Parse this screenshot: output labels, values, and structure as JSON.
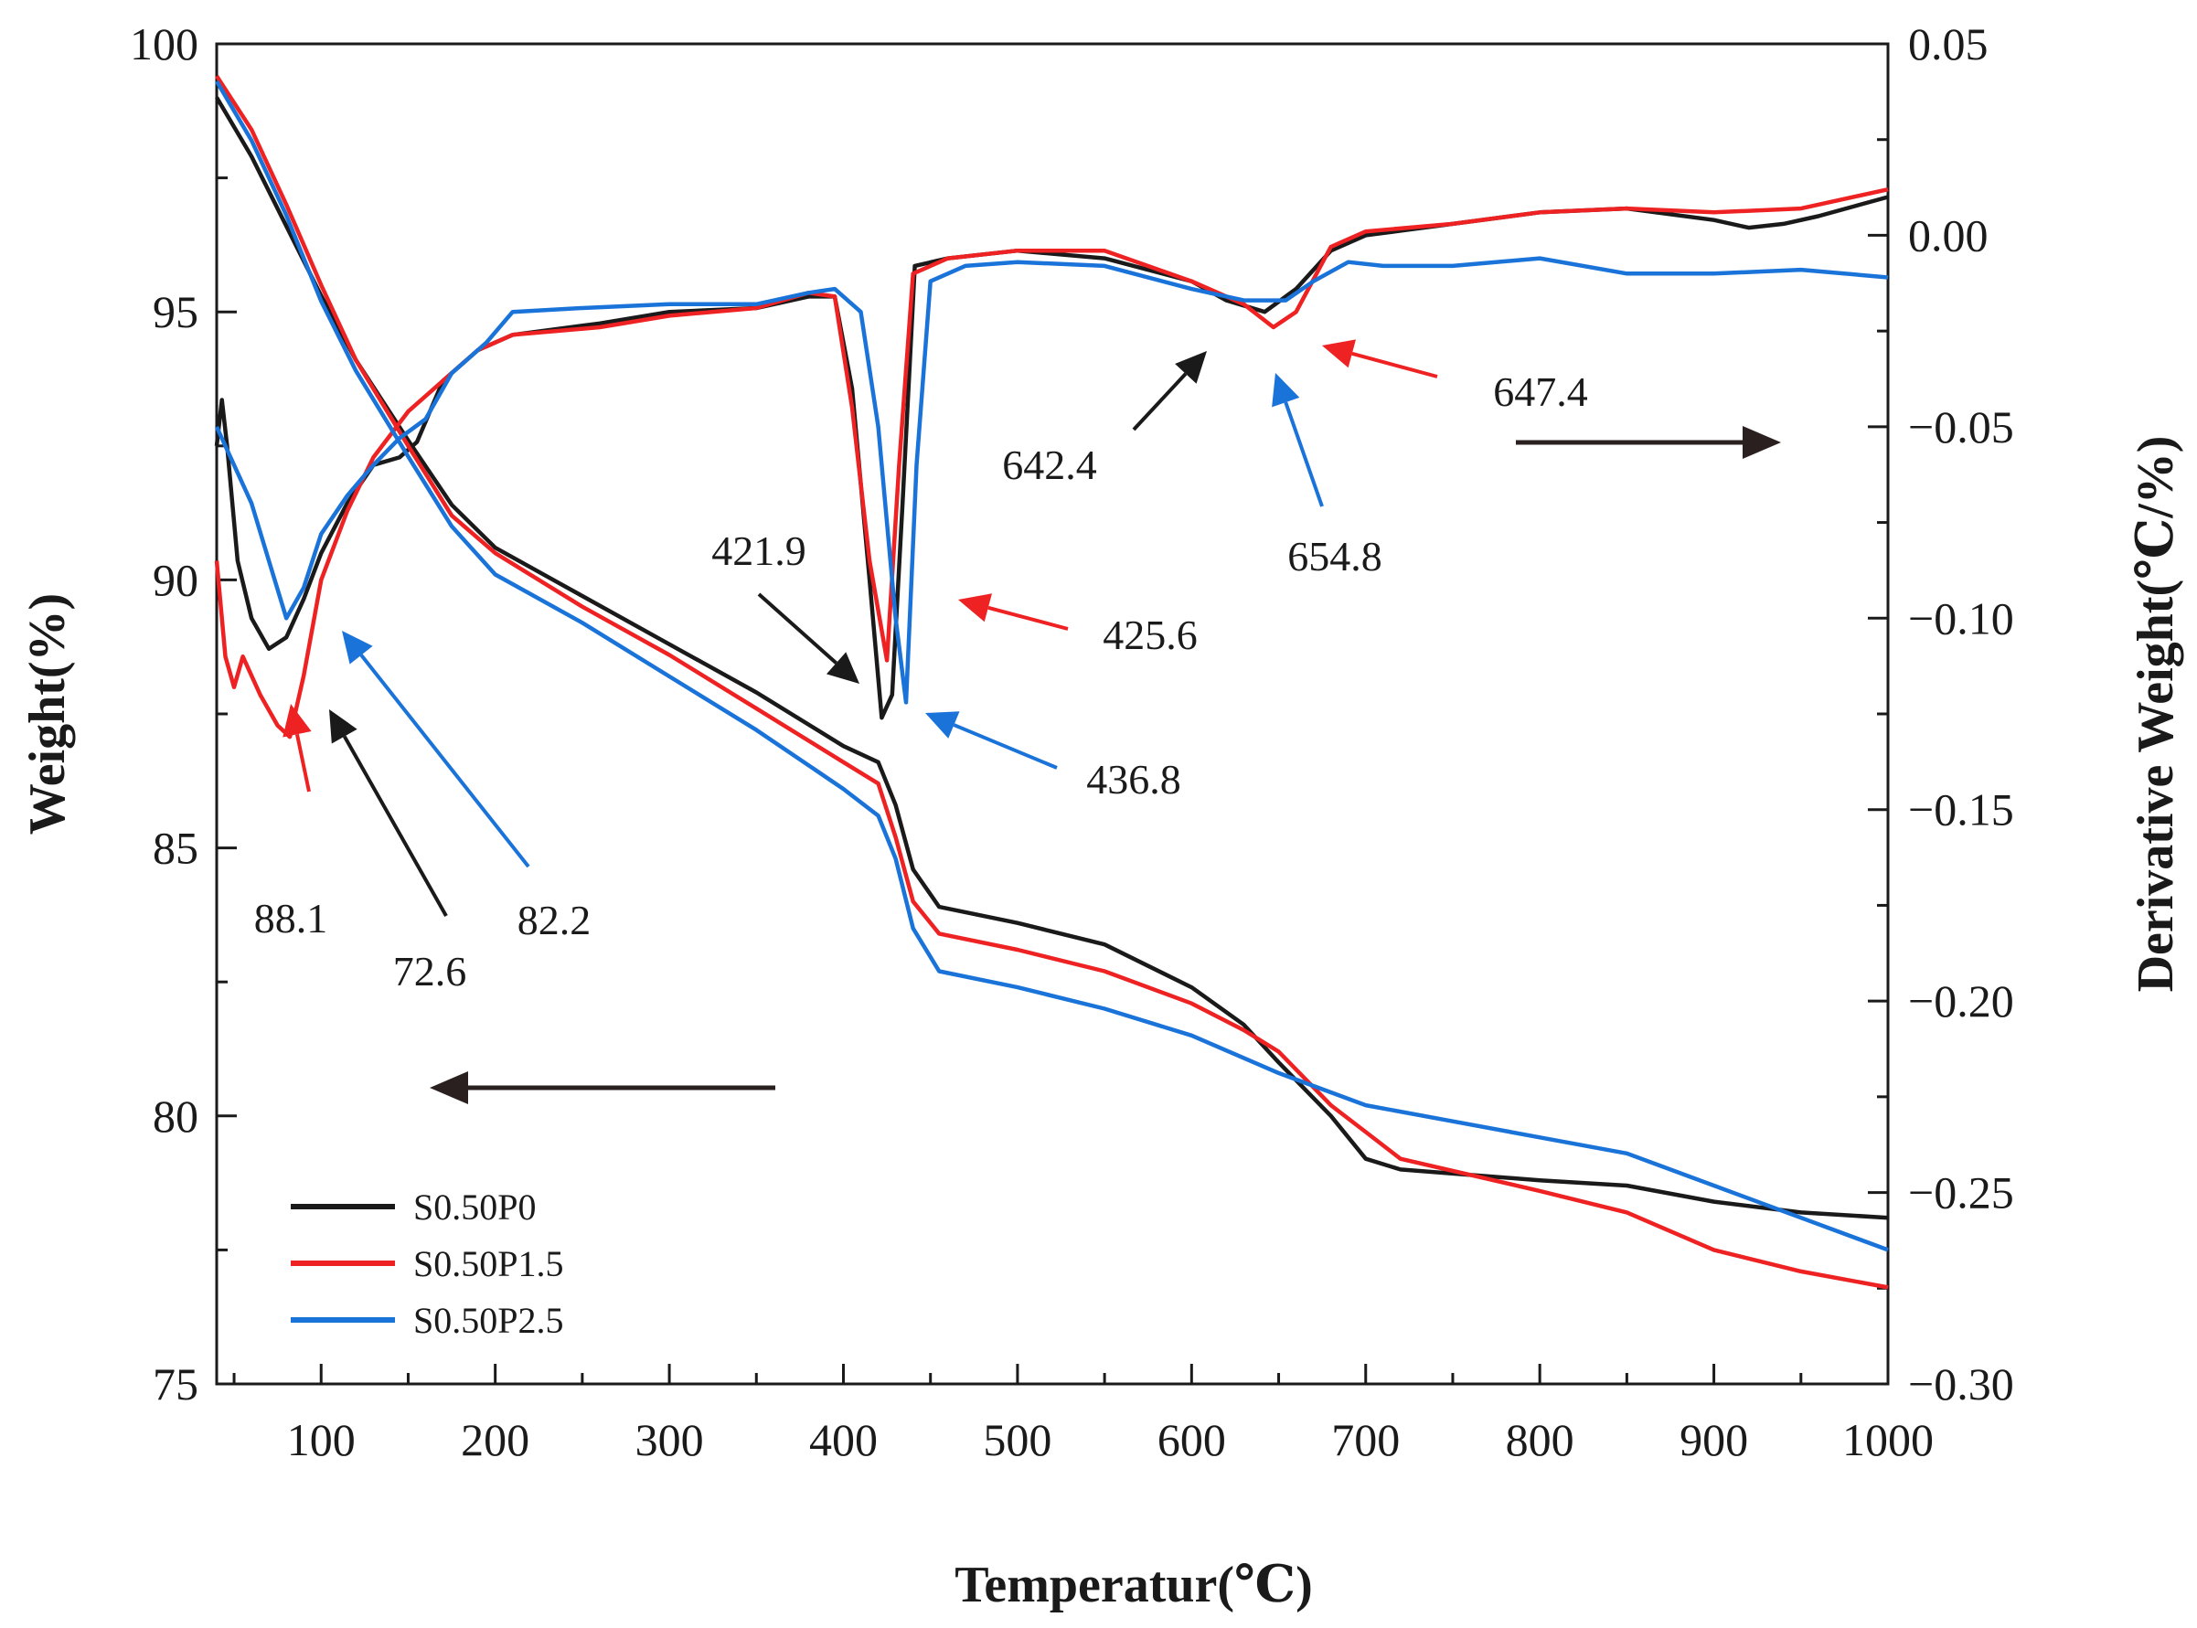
{
  "chart_data": {
    "type": "line",
    "xlabel": "Temperatur(℃)",
    "ylabel_left": "Weight(%)",
    "ylabel_right": "Derivative Weight(℃/%)",
    "xlim": [
      40,
      1000
    ],
    "ylim_left": [
      75,
      100
    ],
    "ylim_right": [
      -0.3,
      0.05
    ],
    "x_ticks": [
      100,
      200,
      300,
      400,
      500,
      600,
      700,
      800,
      900,
      1000
    ],
    "x_tick_labels": [
      "100",
      "200",
      "300",
      "400",
      "500",
      "600",
      "700",
      "800",
      "900",
      "1000"
    ],
    "y_left_ticks": [
      75,
      80,
      85,
      90,
      95,
      100
    ],
    "y_left_tick_labels": [
      "75",
      "80",
      "85",
      "90",
      "95",
      "100"
    ],
    "y_right_ticks": [
      -0.3,
      -0.25,
      -0.2,
      -0.15,
      -0.1,
      -0.05,
      0.0,
      0.05
    ],
    "y_right_tick_labels": [
      "−0.30",
      "−0.25",
      "−0.20",
      "−0.15",
      "−0.10",
      "−0.05",
      "0.00",
      "0.05"
    ],
    "grid": false,
    "legend_position": "bottom-left",
    "series": [
      {
        "name": "S0.50P0",
        "color": "#1a1a1a",
        "weight": [
          [
            40,
            99.0
          ],
          [
            60,
            97.9
          ],
          [
            80,
            96.6
          ],
          [
            100,
            95.3
          ],
          [
            120,
            94.1
          ],
          [
            150,
            92.6
          ],
          [
            175,
            91.4
          ],
          [
            200,
            90.6
          ],
          [
            250,
            89.7
          ],
          [
            300,
            88.8
          ],
          [
            350,
            87.9
          ],
          [
            400,
            86.9
          ],
          [
            420,
            86.6
          ],
          [
            430,
            85.8
          ],
          [
            440,
            84.6
          ],
          [
            455,
            83.9
          ],
          [
            500,
            83.6
          ],
          [
            550,
            83.2
          ],
          [
            600,
            82.4
          ],
          [
            630,
            81.7
          ],
          [
            650,
            81.0
          ],
          [
            680,
            80.0
          ],
          [
            700,
            79.2
          ],
          [
            720,
            79.0
          ],
          [
            800,
            78.8
          ],
          [
            850,
            78.7
          ],
          [
            900,
            78.4
          ],
          [
            950,
            78.2
          ],
          [
            1000,
            78.1
          ]
        ],
        "derivative": [
          [
            40,
            -0.055
          ],
          [
            43,
            -0.043
          ],
          [
            46,
            -0.055
          ],
          [
            52,
            -0.085
          ],
          [
            60,
            -0.1
          ],
          [
            70,
            -0.108
          ],
          [
            80,
            -0.105
          ],
          [
            90,
            -0.095
          ],
          [
            100,
            -0.083
          ],
          [
            115,
            -0.07
          ],
          [
            130,
            -0.06
          ],
          [
            145,
            -0.058
          ],
          [
            155,
            -0.054
          ],
          [
            170,
            -0.038
          ],
          [
            190,
            -0.03
          ],
          [
            210,
            -0.026
          ],
          [
            260,
            -0.023
          ],
          [
            300,
            -0.02
          ],
          [
            350,
            -0.019
          ],
          [
            380,
            -0.016
          ],
          [
            395,
            -0.016
          ],
          [
            405,
            -0.04
          ],
          [
            415,
            -0.09
          ],
          [
            422,
            -0.126
          ],
          [
            428,
            -0.12
          ],
          [
            434,
            -0.07
          ],
          [
            441,
            -0.008
          ],
          [
            460,
            -0.006
          ],
          [
            500,
            -0.004
          ],
          [
            550,
            -0.006
          ],
          [
            600,
            -0.012
          ],
          [
            620,
            -0.017
          ],
          [
            642,
            -0.02
          ],
          [
            660,
            -0.014
          ],
          [
            680,
            -0.004
          ],
          [
            700,
            0.0
          ],
          [
            750,
            0.003
          ],
          [
            800,
            0.006
          ],
          [
            850,
            0.007
          ],
          [
            900,
            0.004
          ],
          [
            920,
            0.002
          ],
          [
            940,
            0.003
          ],
          [
            960,
            0.005
          ],
          [
            1000,
            0.01
          ]
        ]
      },
      {
        "name": "S0.50P1.5",
        "color": "#ee2222",
        "weight": [
          [
            40,
            99.4
          ],
          [
            60,
            98.4
          ],
          [
            80,
            97.0
          ],
          [
            100,
            95.5
          ],
          [
            120,
            94.1
          ],
          [
            150,
            92.5
          ],
          [
            175,
            91.2
          ],
          [
            200,
            90.5
          ],
          [
            250,
            89.5
          ],
          [
            300,
            88.6
          ],
          [
            350,
            87.6
          ],
          [
            400,
            86.6
          ],
          [
            420,
            86.2
          ],
          [
            430,
            85.2
          ],
          [
            440,
            84.0
          ],
          [
            455,
            83.4
          ],
          [
            500,
            83.1
          ],
          [
            550,
            82.7
          ],
          [
            600,
            82.1
          ],
          [
            630,
            81.6
          ],
          [
            650,
            81.2
          ],
          [
            680,
            80.2
          ],
          [
            700,
            79.7
          ],
          [
            720,
            79.2
          ],
          [
            800,
            78.6
          ],
          [
            850,
            78.2
          ],
          [
            900,
            77.5
          ],
          [
            950,
            77.1
          ],
          [
            1000,
            76.8
          ]
        ],
        "derivative": [
          [
            40,
            -0.085
          ],
          [
            45,
            -0.11
          ],
          [
            50,
            -0.118
          ],
          [
            55,
            -0.11
          ],
          [
            65,
            -0.12
          ],
          [
            75,
            -0.128
          ],
          [
            82,
            -0.131
          ],
          [
            90,
            -0.115
          ],
          [
            100,
            -0.09
          ],
          [
            115,
            -0.072
          ],
          [
            130,
            -0.058
          ],
          [
            150,
            -0.046
          ],
          [
            170,
            -0.038
          ],
          [
            190,
            -0.03
          ],
          [
            210,
            -0.026
          ],
          [
            260,
            -0.024
          ],
          [
            300,
            -0.021
          ],
          [
            350,
            -0.019
          ],
          [
            380,
            -0.015
          ],
          [
            395,
            -0.016
          ],
          [
            405,
            -0.045
          ],
          [
            415,
            -0.085
          ],
          [
            425,
            -0.111
          ],
          [
            432,
            -0.06
          ],
          [
            440,
            -0.01
          ],
          [
            460,
            -0.006
          ],
          [
            500,
            -0.004
          ],
          [
            550,
            -0.004
          ],
          [
            600,
            -0.012
          ],
          [
            630,
            -0.018
          ],
          [
            647,
            -0.024
          ],
          [
            660,
            -0.02
          ],
          [
            680,
            -0.003
          ],
          [
            700,
            0.001
          ],
          [
            750,
            0.003
          ],
          [
            800,
            0.006
          ],
          [
            850,
            0.007
          ],
          [
            900,
            0.006
          ],
          [
            950,
            0.007
          ],
          [
            1000,
            0.012
          ]
        ]
      },
      {
        "name": "S0.50P2.5",
        "color": "#1a73d9",
        "weight": [
          [
            40,
            99.3
          ],
          [
            60,
            98.2
          ],
          [
            80,
            96.8
          ],
          [
            100,
            95.2
          ],
          [
            120,
            93.9
          ],
          [
            150,
            92.3
          ],
          [
            175,
            91.0
          ],
          [
            200,
            90.1
          ],
          [
            250,
            89.2
          ],
          [
            300,
            88.2
          ],
          [
            350,
            87.2
          ],
          [
            400,
            86.1
          ],
          [
            420,
            85.6
          ],
          [
            430,
            84.8
          ],
          [
            440,
            83.5
          ],
          [
            455,
            82.7
          ],
          [
            500,
            82.4
          ],
          [
            550,
            82.0
          ],
          [
            600,
            81.5
          ],
          [
            650,
            80.8
          ],
          [
            700,
            80.2
          ],
          [
            750,
            79.9
          ],
          [
            800,
            79.6
          ],
          [
            850,
            79.3
          ],
          [
            900,
            78.7
          ],
          [
            950,
            78.1
          ],
          [
            1000,
            77.5
          ]
        ],
        "derivative": [
          [
            40,
            -0.05
          ],
          [
            50,
            -0.06
          ],
          [
            60,
            -0.07
          ],
          [
            70,
            -0.085
          ],
          [
            80,
            -0.1
          ],
          [
            90,
            -0.092
          ],
          [
            100,
            -0.078
          ],
          [
            115,
            -0.068
          ],
          [
            130,
            -0.06
          ],
          [
            145,
            -0.053
          ],
          [
            160,
            -0.048
          ],
          [
            175,
            -0.036
          ],
          [
            195,
            -0.028
          ],
          [
            210,
            -0.02
          ],
          [
            250,
            -0.019
          ],
          [
            300,
            -0.018
          ],
          [
            350,
            -0.018
          ],
          [
            380,
            -0.015
          ],
          [
            395,
            -0.014
          ],
          [
            410,
            -0.02
          ],
          [
            420,
            -0.05
          ],
          [
            430,
            -0.1
          ],
          [
            436,
            -0.122
          ],
          [
            442,
            -0.06
          ],
          [
            450,
            -0.012
          ],
          [
            470,
            -0.008
          ],
          [
            500,
            -0.007
          ],
          [
            550,
            -0.008
          ],
          [
            600,
            -0.014
          ],
          [
            630,
            -0.017
          ],
          [
            654,
            -0.017
          ],
          [
            670,
            -0.012
          ],
          [
            690,
            -0.007
          ],
          [
            710,
            -0.008
          ],
          [
            750,
            -0.008
          ],
          [
            800,
            -0.006
          ],
          [
            850,
            -0.01
          ],
          [
            900,
            -0.01
          ],
          [
            950,
            -0.009
          ],
          [
            1000,
            -0.011
          ]
        ]
      }
    ],
    "annotations": [
      {
        "label": "88.1",
        "color": "#ee2222",
        "direction": "up"
      },
      {
        "label": "72.6",
        "color": "#1a1a1a",
        "direction": "up-left"
      },
      {
        "label": "82.2",
        "color": "#1a73d9",
        "direction": "up-left"
      },
      {
        "label": "421.9",
        "color": "#1a1a1a",
        "direction": "down-right"
      },
      {
        "label": "425.6",
        "color": "#ee2222",
        "direction": "left"
      },
      {
        "label": "436.8",
        "color": "#1a73d9",
        "direction": "up-left"
      },
      {
        "label": "642.4",
        "color": "#1a1a1a",
        "direction": "up-right"
      },
      {
        "label": "654.8",
        "color": "#1a73d9",
        "direction": "up"
      },
      {
        "label": "647.4",
        "color": "#ee2222",
        "direction": "left"
      }
    ],
    "axis_arrows": [
      {
        "points_to": "left-axis",
        "color": "#2b2020"
      },
      {
        "points_to": "right-axis",
        "color": "#2b2020"
      }
    ]
  }
}
